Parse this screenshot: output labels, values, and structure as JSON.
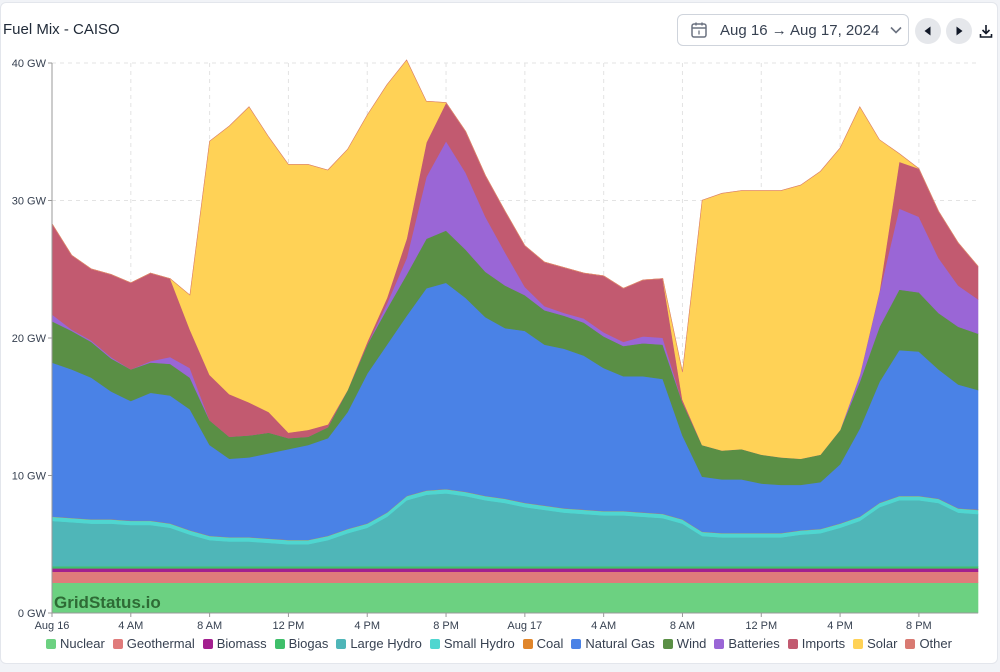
{
  "header": {
    "title": "Fuel Mix - CAISO",
    "date_range": "Aug 16 → Aug 17, 2024"
  },
  "watermark": "GridStatus.io",
  "chart_data": {
    "type": "area",
    "stacked": true,
    "ylim": [
      0,
      40
    ],
    "y_ticks": [
      {
        "value": 0,
        "label": "0 GW"
      },
      {
        "value": 10,
        "label": "10 GW"
      },
      {
        "value": 20,
        "label": "20 GW"
      },
      {
        "value": 30,
        "label": "30 GW"
      },
      {
        "value": 40,
        "label": "40 GW"
      }
    ],
    "xlim": [
      0,
      47
    ],
    "x_ticks": [
      {
        "value": 0,
        "label": "Aug 16"
      },
      {
        "value": 4,
        "label": "4 AM"
      },
      {
        "value": 8,
        "label": "8 AM"
      },
      {
        "value": 12,
        "label": "12 PM"
      },
      {
        "value": 16,
        "label": "4 PM"
      },
      {
        "value": 20,
        "label": "8 PM"
      },
      {
        "value": 24,
        "label": "Aug 17"
      },
      {
        "value": 28,
        "label": "4 AM"
      },
      {
        "value": 32,
        "label": "8 AM"
      },
      {
        "value": 36,
        "label": "12 PM"
      },
      {
        "value": 40,
        "label": "4 PM"
      },
      {
        "value": 44,
        "label": "8 PM"
      }
    ],
    "x_hours": [
      0,
      1,
      2,
      3,
      4,
      5,
      6,
      7,
      8,
      9,
      10,
      11,
      12,
      13,
      14,
      15,
      16,
      17,
      18,
      19,
      20,
      21,
      22,
      23,
      24,
      25,
      26,
      27,
      28,
      29,
      30,
      31,
      32,
      33,
      34,
      35,
      36,
      37,
      38,
      39,
      40,
      41,
      42,
      43,
      44,
      45,
      46,
      47
    ],
    "series": [
      {
        "name": "Nuclear",
        "color": "#6cd181",
        "values": [
          2.2,
          2.2,
          2.2,
          2.2,
          2.2,
          2.2,
          2.2,
          2.2,
          2.2,
          2.2,
          2.2,
          2.2,
          2.2,
          2.2,
          2.2,
          2.2,
          2.2,
          2.2,
          2.2,
          2.2,
          2.2,
          2.2,
          2.2,
          2.2,
          2.2,
          2.2,
          2.2,
          2.2,
          2.2,
          2.2,
          2.2,
          2.2,
          2.2,
          2.2,
          2.2,
          2.2,
          2.2,
          2.2,
          2.2,
          2.2,
          2.2,
          2.2,
          2.2,
          2.2,
          2.2,
          2.2,
          2.2,
          2.2
        ]
      },
      {
        "name": "Geothermal",
        "color": "#e07b7b",
        "values": [
          0.8,
          0.8,
          0.8,
          0.8,
          0.8,
          0.8,
          0.8,
          0.8,
          0.8,
          0.8,
          0.8,
          0.8,
          0.8,
          0.8,
          0.8,
          0.8,
          0.8,
          0.8,
          0.8,
          0.8,
          0.8,
          0.8,
          0.8,
          0.8,
          0.8,
          0.8,
          0.8,
          0.8,
          0.8,
          0.8,
          0.8,
          0.8,
          0.8,
          0.8,
          0.8,
          0.8,
          0.8,
          0.8,
          0.8,
          0.8,
          0.8,
          0.8,
          0.8,
          0.8,
          0.8,
          0.8,
          0.8,
          0.8
        ]
      },
      {
        "name": "Biomass",
        "color": "#a3208f",
        "values": [
          0.25,
          0.25,
          0.25,
          0.25,
          0.25,
          0.25,
          0.25,
          0.25,
          0.25,
          0.25,
          0.25,
          0.25,
          0.25,
          0.25,
          0.25,
          0.25,
          0.25,
          0.25,
          0.25,
          0.25,
          0.25,
          0.25,
          0.25,
          0.25,
          0.25,
          0.25,
          0.25,
          0.25,
          0.25,
          0.25,
          0.25,
          0.25,
          0.25,
          0.25,
          0.25,
          0.25,
          0.25,
          0.25,
          0.25,
          0.25,
          0.25,
          0.25,
          0.25,
          0.25,
          0.25,
          0.25,
          0.25,
          0.25
        ]
      },
      {
        "name": "Biogas",
        "color": "#3fbf6a",
        "values": [
          0.15,
          0.15,
          0.15,
          0.15,
          0.15,
          0.15,
          0.15,
          0.15,
          0.15,
          0.15,
          0.15,
          0.15,
          0.15,
          0.15,
          0.15,
          0.15,
          0.15,
          0.15,
          0.15,
          0.15,
          0.15,
          0.15,
          0.15,
          0.15,
          0.15,
          0.15,
          0.15,
          0.15,
          0.15,
          0.15,
          0.15,
          0.15,
          0.15,
          0.15,
          0.15,
          0.15,
          0.15,
          0.15,
          0.15,
          0.15,
          0.15,
          0.15,
          0.15,
          0.15,
          0.15,
          0.15,
          0.15,
          0.15
        ]
      },
      {
        "name": "Large Hydro",
        "color": "#4fb6b8",
        "values": [
          3.3,
          3.2,
          3.1,
          3.1,
          3.0,
          3.0,
          2.8,
          2.3,
          1.9,
          1.8,
          1.8,
          1.7,
          1.6,
          1.6,
          1.9,
          2.4,
          2.8,
          3.6,
          4.8,
          5.2,
          5.3,
          5.1,
          4.8,
          4.6,
          4.3,
          4.1,
          3.9,
          3.8,
          3.7,
          3.7,
          3.6,
          3.5,
          3.1,
          2.2,
          2.1,
          2.1,
          2.1,
          2.1,
          2.3,
          2.4,
          2.8,
          3.3,
          4.3,
          4.8,
          4.8,
          4.6,
          3.9,
          3.8
        ]
      },
      {
        "name": "Small Hydro",
        "color": "#4fd6d0",
        "values": [
          0.3,
          0.3,
          0.3,
          0.3,
          0.3,
          0.3,
          0.3,
          0.3,
          0.3,
          0.3,
          0.3,
          0.3,
          0.3,
          0.3,
          0.3,
          0.3,
          0.3,
          0.3,
          0.3,
          0.3,
          0.3,
          0.3,
          0.3,
          0.3,
          0.3,
          0.3,
          0.3,
          0.3,
          0.3,
          0.3,
          0.3,
          0.3,
          0.3,
          0.3,
          0.3,
          0.3,
          0.3,
          0.3,
          0.3,
          0.3,
          0.3,
          0.3,
          0.3,
          0.3,
          0.3,
          0.3,
          0.3,
          0.3
        ]
      },
      {
        "name": "Coal",
        "color": "#e0852a",
        "values": [
          0.02,
          0.02,
          0.02,
          0.02,
          0.02,
          0.02,
          0.02,
          0.02,
          0.02,
          0.02,
          0.02,
          0.02,
          0.02,
          0.02,
          0.02,
          0.02,
          0.02,
          0.02,
          0.02,
          0.02,
          0.02,
          0.02,
          0.02,
          0.02,
          0.02,
          0.02,
          0.02,
          0.02,
          0.02,
          0.02,
          0.02,
          0.02,
          0.02,
          0.02,
          0.02,
          0.02,
          0.02,
          0.02,
          0.02,
          0.02,
          0.02,
          0.02,
          0.02,
          0.02,
          0.02,
          0.02,
          0.02,
          0.02
        ]
      },
      {
        "name": "Natural Gas",
        "color": "#4a82e6",
        "values": [
          11.2,
          10.8,
          10.3,
          9.3,
          8.7,
          9.3,
          9.3,
          8.8,
          6.6,
          5.7,
          5.8,
          6.2,
          6.6,
          6.9,
          7.1,
          8.5,
          10.9,
          12.2,
          13.1,
          14.7,
          15.0,
          14.1,
          13.0,
          12.4,
          12.5,
          11.7,
          11.6,
          11.2,
          10.4,
          9.8,
          9.9,
          9.8,
          6.1,
          4.0,
          3.9,
          3.9,
          3.6,
          3.5,
          3.3,
          3.4,
          4.3,
          6.4,
          8.8,
          10.6,
          10.5,
          9.4,
          9.0,
          8.7
        ]
      },
      {
        "name": "Wind",
        "color": "#5a8f45",
        "values": [
          3.0,
          2.8,
          2.6,
          2.4,
          2.3,
          2.2,
          2.3,
          2.3,
          1.8,
          1.6,
          1.6,
          1.5,
          0.8,
          0.6,
          0.8,
          1.6,
          2.1,
          2.6,
          3.0,
          3.6,
          3.8,
          3.5,
          3.3,
          3.1,
          2.6,
          2.5,
          2.4,
          2.4,
          2.3,
          2.2,
          2.4,
          2.5,
          2.4,
          2.3,
          2.1,
          2.2,
          2.1,
          2.0,
          1.9,
          2.0,
          2.5,
          3.4,
          4.0,
          4.4,
          4.3,
          4.1,
          4.2,
          4.1
        ]
      },
      {
        "name": "Batteries",
        "color": "#9a66d6",
        "values": [
          0.5,
          0.1,
          0.1,
          0.1,
          0.0,
          0.1,
          0.5,
          0.7,
          0.0,
          0.0,
          0.0,
          0.0,
          0.0,
          0.0,
          0.0,
          0.0,
          0.0,
          0.4,
          1.2,
          4.5,
          6.5,
          5.6,
          4.0,
          2.4,
          0.6,
          0.3,
          0.2,
          0.3,
          0.3,
          0.3,
          0.5,
          0.5,
          0.0,
          0.0,
          0.0,
          0.0,
          0.0,
          0.0,
          0.0,
          0.0,
          0.0,
          0.5,
          2.5,
          5.9,
          5.5,
          4.0,
          3.0,
          2.5
        ]
      },
      {
        "name": "Imports",
        "color": "#c25a70",
        "values": [
          6.6,
          5.4,
          5.2,
          6.0,
          6.3,
          6.4,
          5.7,
          2.8,
          3.3,
          3.1,
          2.4,
          1.5,
          0.4,
          0.5,
          0.2,
          0.0,
          0.2,
          0.4,
          1.4,
          2.5,
          2.8,
          3.0,
          3.0,
          3.0,
          3.0,
          3.2,
          3.3,
          3.3,
          4.1,
          3.9,
          4.1,
          4.3,
          0.2,
          0.0,
          0.0,
          0.0,
          0.0,
          0.0,
          0.0,
          0.0,
          0.0,
          0.0,
          0.1,
          3.4,
          3.5,
          3.4,
          3.1,
          2.4
        ]
      },
      {
        "name": "Solar",
        "color": "#ffd256",
        "values": [
          0.0,
          0.0,
          0.0,
          0.0,
          0.0,
          0.0,
          0.0,
          2.5,
          17.0,
          19.5,
          21.5,
          20.0,
          19.5,
          19.3,
          18.5,
          17.5,
          16.5,
          15.5,
          13.0,
          3.0,
          0.0,
          0.0,
          0.0,
          0.0,
          0.0,
          0.0,
          0.0,
          0.0,
          0.0,
          0.0,
          0.0,
          0.0,
          2.0,
          17.8,
          18.7,
          18.8,
          19.2,
          19.4,
          19.9,
          20.6,
          20.5,
          19.5,
          11.0,
          0.6,
          0.0,
          0.0,
          0.0,
          0.0
        ]
      },
      {
        "name": "Other",
        "color": "#d97a72",
        "values": [
          0.0,
          0.0,
          0.0,
          0.0,
          0.0,
          0.0,
          0.0,
          0.0,
          0.0,
          0.0,
          0.0,
          0.0,
          0.0,
          0.0,
          0.0,
          0.0,
          0.0,
          0.0,
          0.0,
          0.0,
          0.0,
          0.0,
          0.0,
          0.0,
          0.0,
          0.0,
          0.0,
          0.0,
          0.0,
          0.0,
          0.0,
          0.0,
          0.0,
          0.0,
          0.0,
          0.0,
          0.0,
          0.0,
          0.0,
          0.0,
          0.0,
          0.0,
          0.0,
          0.0,
          0.0,
          0.0,
          0.0,
          0.0
        ]
      }
    ]
  }
}
